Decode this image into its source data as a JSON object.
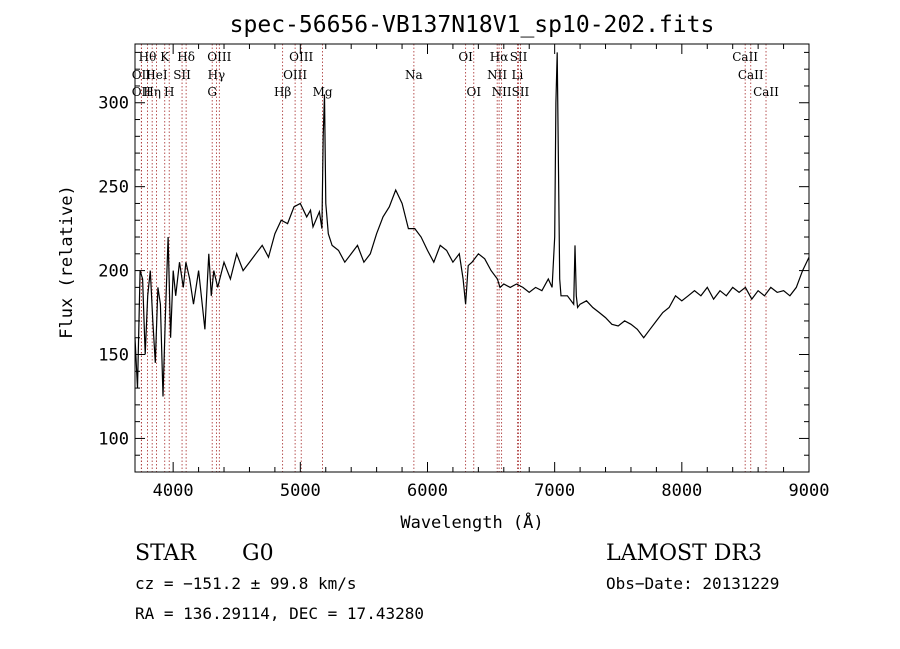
{
  "chart_data": {
    "type": "line",
    "title": "spec-56656-VB137N18V1_sp10-202.fits",
    "xlabel": "Wavelength (Å)",
    "ylabel": "Flux (relative)",
    "xlim": [
      3700,
      9000
    ],
    "ylim": [
      80,
      335
    ],
    "xticks": [
      4000,
      5000,
      6000,
      7000,
      8000,
      9000
    ],
    "yticks": [
      100,
      150,
      200,
      250,
      300
    ],
    "series": [
      {
        "name": "flux",
        "x": [
          3700,
          3720,
          3740,
          3760,
          3780,
          3800,
          3820,
          3840,
          3860,
          3880,
          3900,
          3920,
          3940,
          3960,
          3980,
          4000,
          4020,
          4050,
          4080,
          4100,
          4130,
          4160,
          4200,
          4250,
          4280,
          4300,
          4320,
          4350,
          4400,
          4450,
          4500,
          4550,
          4600,
          4650,
          4700,
          4750,
          4800,
          4850,
          4900,
          4950,
          5000,
          5050,
          5080,
          5100,
          5150,
          5170,
          5180,
          5190,
          5200,
          5220,
          5250,
          5300,
          5350,
          5400,
          5450,
          5500,
          5550,
          5600,
          5650,
          5700,
          5750,
          5800,
          5850,
          5900,
          5950,
          6000,
          6050,
          6100,
          6150,
          6200,
          6250,
          6280,
          6300,
          6320,
          6350,
          6400,
          6450,
          6500,
          6550,
          6570,
          6600,
          6650,
          6700,
          6750,
          6800,
          6850,
          6900,
          6950,
          6980,
          7000,
          7010,
          7020,
          7030,
          7040,
          7050,
          7100,
          7150,
          7160,
          7170,
          7180,
          7200,
          7250,
          7300,
          7350,
          7400,
          7450,
          7500,
          7550,
          7600,
          7650,
          7700,
          7750,
          7800,
          7850,
          7900,
          7950,
          8000,
          8050,
          8100,
          8150,
          8200,
          8250,
          8300,
          8350,
          8400,
          8450,
          8500,
          8550,
          8600,
          8650,
          8700,
          8750,
          8800,
          8850,
          8900,
          8950,
          9000
        ],
        "y": [
          160,
          130,
          200,
          195,
          150,
          185,
          200,
          170,
          145,
          190,
          180,
          125,
          175,
          220,
          160,
          200,
          185,
          205,
          190,
          205,
          195,
          180,
          200,
          165,
          210,
          185,
          200,
          190,
          205,
          195,
          210,
          200,
          205,
          210,
          215,
          208,
          222,
          230,
          228,
          238,
          240,
          232,
          236,
          226,
          235,
          225,
          280,
          305,
          240,
          222,
          215,
          212,
          205,
          210,
          215,
          205,
          210,
          222,
          232,
          238,
          248,
          240,
          225,
          225,
          220,
          212,
          205,
          215,
          212,
          205,
          210,
          195,
          180,
          203,
          205,
          210,
          207,
          200,
          195,
          190,
          192,
          190,
          192,
          190,
          187,
          190,
          188,
          195,
          190,
          220,
          300,
          330,
          260,
          195,
          185,
          185,
          180,
          215,
          185,
          178,
          180,
          182,
          178,
          175,
          172,
          168,
          167,
          170,
          168,
          165,
          160,
          165,
          170,
          175,
          178,
          185,
          182,
          185,
          188,
          185,
          190,
          183,
          188,
          185,
          190,
          187,
          190,
          183,
          188,
          185,
          190,
          187,
          188,
          185,
          190,
          200,
          208
        ]
      }
    ],
    "line_marks": [
      {
        "wl": 3750,
        "tier": 1,
        "name": "OII"
      },
      {
        "wl": 3750,
        "tier": 2,
        "name": "OII"
      },
      {
        "wl": 3798,
        "tier": 0,
        "name": "Hθ"
      },
      {
        "wl": 3835,
        "tier": 2,
        "name": "Hη"
      },
      {
        "wl": 3869,
        "tier": 1,
        "name": "HeI"
      },
      {
        "wl": 3934,
        "tier": 0,
        "name": "K"
      },
      {
        "wl": 3969,
        "tier": 2,
        "name": "H"
      },
      {
        "wl": 4070,
        "tier": 1,
        "name": "SII"
      },
      {
        "wl": 4102,
        "tier": 0,
        "name": "Hδ"
      },
      {
        "wl": 4307,
        "tier": 2,
        "name": "G"
      },
      {
        "wl": 4340,
        "tier": 1,
        "name": "Hγ"
      },
      {
        "wl": 4363,
        "tier": 0,
        "name": "OIII"
      },
      {
        "wl": 4861,
        "tier": 2,
        "name": "Hβ"
      },
      {
        "wl": 4959,
        "tier": 1,
        "name": "OIII"
      },
      {
        "wl": 5007,
        "tier": 0,
        "name": "OIII"
      },
      {
        "wl": 5175,
        "tier": 2,
        "name": "Mg"
      },
      {
        "wl": 5893,
        "tier": 1,
        "name": "Na"
      },
      {
        "wl": 6300,
        "tier": 0,
        "name": "OI"
      },
      {
        "wl": 6364,
        "tier": 2,
        "name": "OI"
      },
      {
        "wl": 6548,
        "tier": 1,
        "name": "NII"
      },
      {
        "wl": 6563,
        "tier": 0,
        "name": "Hα"
      },
      {
        "wl": 6583,
        "tier": 2,
        "name": "NII"
      },
      {
        "wl": 6707,
        "tier": 1,
        "name": "Li"
      },
      {
        "wl": 6716,
        "tier": 0,
        "name": "SII"
      },
      {
        "wl": 6731,
        "tier": 2,
        "name": "SII"
      },
      {
        "wl": 8498,
        "tier": 0,
        "name": "CaII"
      },
      {
        "wl": 8542,
        "tier": 1,
        "name": "CaII"
      },
      {
        "wl": 8662,
        "tier": 2,
        "name": "CaII"
      }
    ],
    "line_color": "#a52a2a"
  },
  "info": {
    "class": "STAR",
    "subclass": "G0",
    "survey": "LAMOST DR3",
    "cz": "cz = −151.2 ± 99.8 km/s",
    "obs_date": "Obs−Date: 20131229",
    "coords": "RA = 136.29114, DEC =  17.43280"
  }
}
